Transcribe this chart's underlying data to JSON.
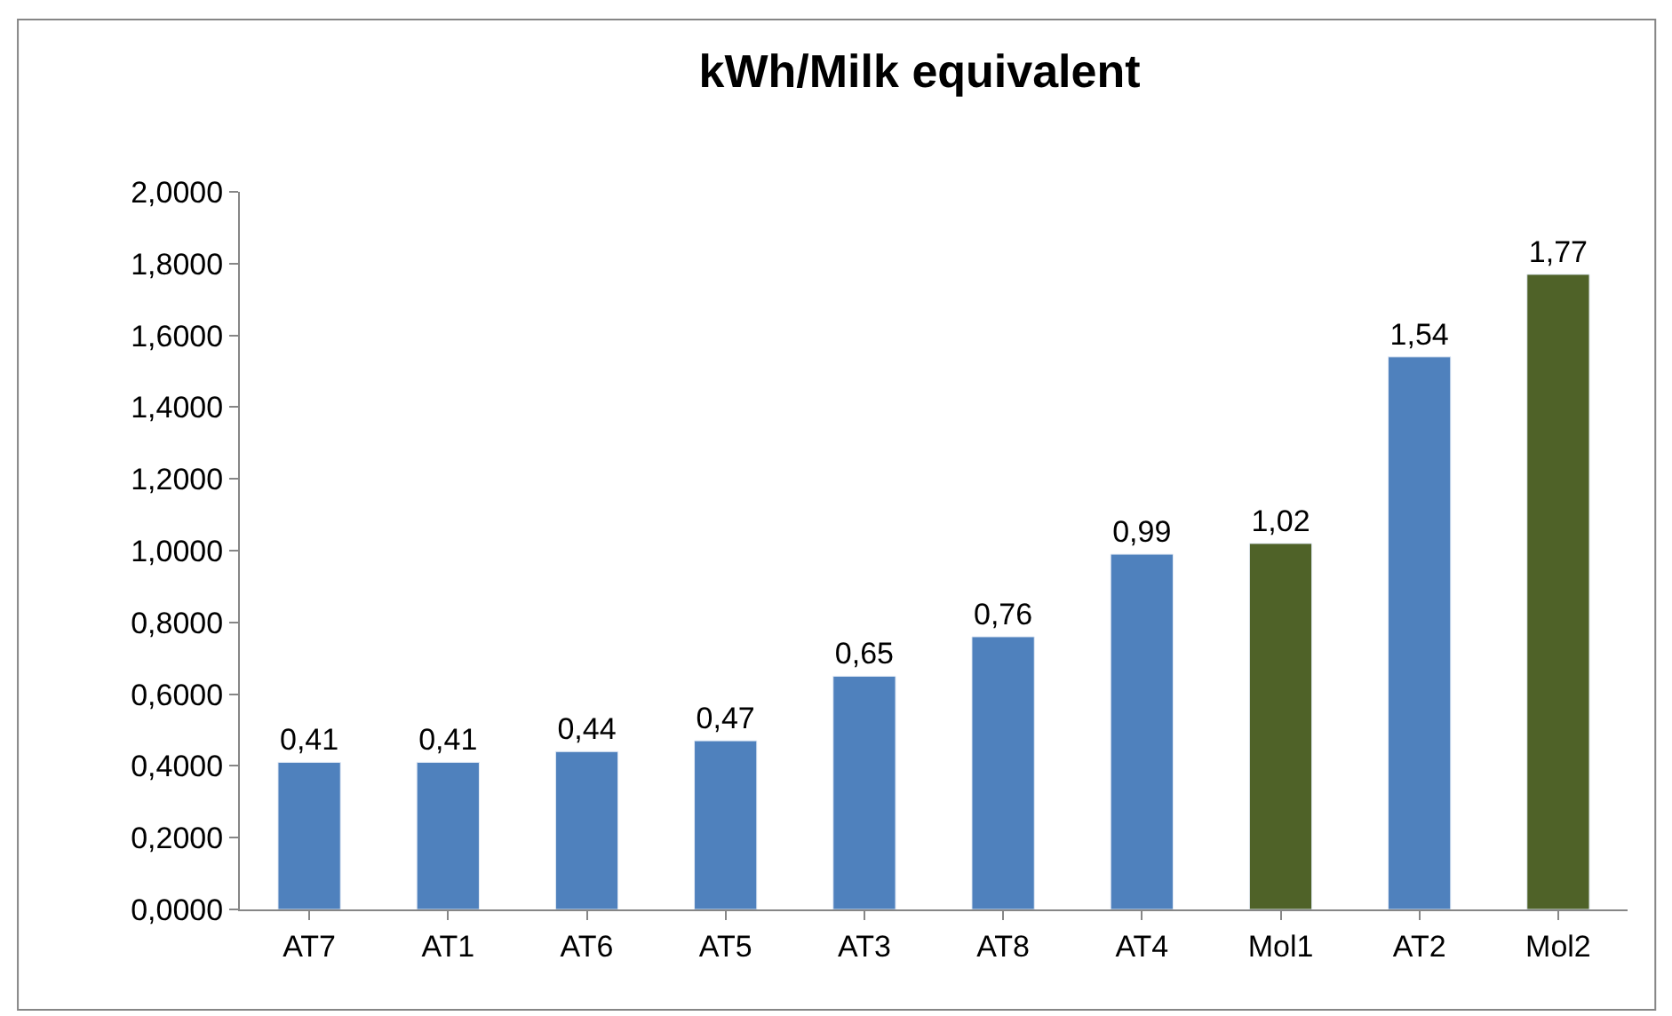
{
  "chart_data": {
    "type": "bar",
    "title": "kWh/Milk equivalent",
    "categories": [
      "AT7",
      "AT1",
      "AT6",
      "AT5",
      "AT3",
      "AT8",
      "AT4",
      "Mol1",
      "AT2",
      "Mol2"
    ],
    "values": [
      0.41,
      0.41,
      0.44,
      0.47,
      0.65,
      0.76,
      0.99,
      1.02,
      1.54,
      1.77
    ],
    "colors": [
      "#4f81bd",
      "#4f81bd",
      "#4f81bd",
      "#4f81bd",
      "#4f81bd",
      "#4f81bd",
      "#4f81bd",
      "#4f6228",
      "#4f81bd",
      "#4f6228"
    ],
    "value_labels": [
      "0,41",
      "0,41",
      "0,44",
      "0,47",
      "0,65",
      "0,76",
      "0,99",
      "1,02",
      "1,54",
      "1,77"
    ],
    "ylim": [
      0,
      2
    ],
    "yticks": [
      {
        "value": 0,
        "label": "0,0000"
      },
      {
        "value": 0.2,
        "label": "0,2000"
      },
      {
        "value": 0.4,
        "label": "0,4000"
      },
      {
        "value": 0.6,
        "label": "0,6000"
      },
      {
        "value": 0.8,
        "label": "0,8000"
      },
      {
        "value": 1.0,
        "label": "1,0000"
      },
      {
        "value": 1.2,
        "label": "1,2000"
      },
      {
        "value": 1.4,
        "label": "1,4000"
      },
      {
        "value": 1.6,
        "label": "1,6000"
      },
      {
        "value": 1.8,
        "label": "1,8000"
      },
      {
        "value": 2.0,
        "label": "2,0000"
      }
    ],
    "tick_labels": "xy"
  }
}
